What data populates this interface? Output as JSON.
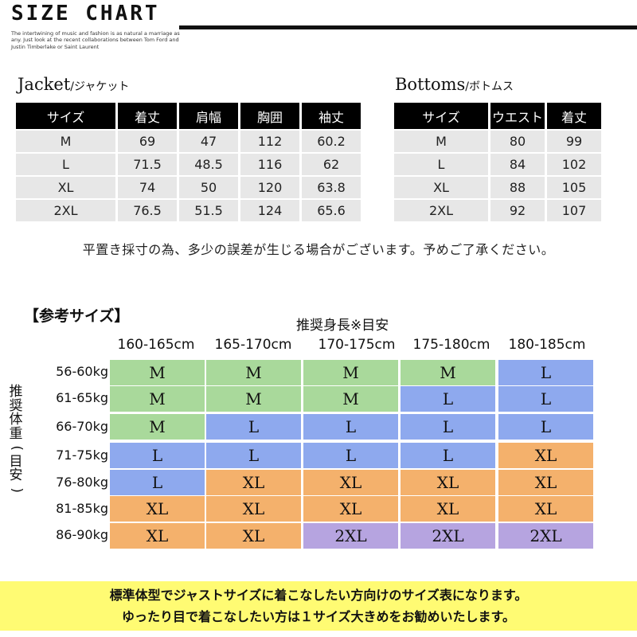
{
  "header": {
    "title": "SIZE CHART",
    "blurb": "The intertwining of music and fashion is as natural a marriage as any. Just look at the recent collaborations between Tom Ford and Justin Timberlake or Saint Laurent"
  },
  "jacket": {
    "title": "Jacket",
    "subtitle": "/ジャケット",
    "headers": [
      "サイズ",
      "着丈",
      "肩幅",
      "胸囲",
      "袖丈"
    ],
    "rows": [
      [
        "M",
        "69",
        "47",
        "112",
        "60.2"
      ],
      [
        "L",
        "71.5",
        "48.5",
        "116",
        "62"
      ],
      [
        "XL",
        "74",
        "50",
        "120",
        "63.8"
      ],
      [
        "2XL",
        "76.5",
        "51.5",
        "124",
        "65.6"
      ]
    ]
  },
  "bottoms": {
    "title": "Bottoms",
    "subtitle": "/ボトムス",
    "headers": [
      "サイズ",
      "ウエスト",
      "着丈"
    ],
    "rows": [
      [
        "M",
        "80",
        "99"
      ],
      [
        "L",
        "84",
        "102"
      ],
      [
        "XL",
        "88",
        "105"
      ],
      [
        "2XL",
        "92",
        "107"
      ]
    ]
  },
  "note": "平置き採寸の為、多少の誤差が生じる場合がございます。予めご了承ください。",
  "reference": {
    "title": "【参考サイズ】",
    "height_label": "推奨身長※目安",
    "weight_label": "推奨体重(目安)",
    "heights": [
      "160-165cm",
      "165-170cm",
      "170-175cm",
      "175-180cm",
      "180-185cm"
    ],
    "weights": [
      "56-60kg",
      "61-65kg",
      "66-70kg",
      "71-75kg",
      "76-80kg",
      "81-85kg",
      "86-90kg"
    ],
    "grid": [
      [
        "M",
        "M",
        "M",
        "M",
        "L"
      ],
      [
        "M",
        "M",
        "M",
        "L",
        "L"
      ],
      [
        "M",
        "L",
        "L",
        "L",
        "L"
      ],
      [
        "L",
        "L",
        "L",
        "L",
        "XL"
      ],
      [
        "L",
        "XL",
        "XL",
        "XL",
        "XL"
      ],
      [
        "XL",
        "XL",
        "XL",
        "XL",
        "XL"
      ],
      [
        "XL",
        "XL",
        "2XL",
        "2XL",
        "2XL"
      ]
    ],
    "colors": {
      "M": "#a9d99b",
      "L": "#8ea9ee",
      "XL": "#f4b16c",
      "2XL": "#b6a4e0"
    }
  },
  "banner": {
    "line1": "標準体型でジャストサイズに着こなしたい方向けのサイズ表になります。",
    "line2": "ゆったり目で着こなしたい方は１サイズ大きめをお勧めいたします。"
  }
}
